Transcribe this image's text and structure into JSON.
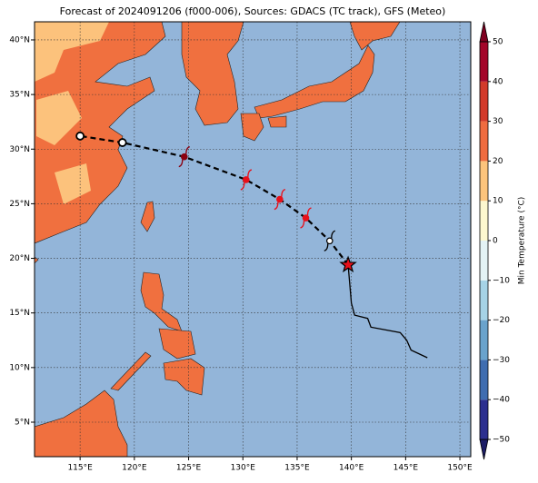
{
  "chart_data": {
    "type": "map",
    "title": "Forecast of 2024091206 (f000-006), Sources: GDACS (TC track), GFS (Meteo)",
    "xlim": [
      110.8,
      151.0
    ],
    "ylim": [
      1.84,
      41.66
    ],
    "xticks": [
      {
        "value": 115,
        "label": "115°E"
      },
      {
        "value": 120,
        "label": "120°E"
      },
      {
        "value": 125,
        "label": "125°E"
      },
      {
        "value": 130,
        "label": "130°E"
      },
      {
        "value": 135,
        "label": "135°E"
      },
      {
        "value": 140,
        "label": "140°E"
      },
      {
        "value": 145,
        "label": "145°E"
      },
      {
        "value": 150,
        "label": "150°E"
      }
    ],
    "yticks": [
      {
        "value": 5,
        "label": "5°N"
      },
      {
        "value": 10,
        "label": "10°N"
      },
      {
        "value": 15,
        "label": "15°N"
      },
      {
        "value": 20,
        "label": "20°N"
      },
      {
        "value": 25,
        "label": "25°N"
      },
      {
        "value": 30,
        "label": "30°N"
      },
      {
        "value": 35,
        "label": "35°N"
      },
      {
        "value": 40,
        "label": "40°N"
      }
    ],
    "grid": true,
    "series": [
      {
        "lon": [
          139.7,
          140.0,
          140.3,
          141.5,
          141.8,
          144.5,
          145.1,
          145.5,
          147.0
        ],
        "lat": [
          19.4,
          15.9,
          14.8,
          14.5,
          13.7,
          13.2,
          12.5,
          11.6,
          10.9
        ],
        "color": "#000000",
        "style": "solid"
      },
      {
        "lon": [
          139.7,
          138.0,
          135.8,
          133.4,
          130.3,
          124.6,
          118.9,
          115.0
        ],
        "lat": [
          19.4,
          21.6,
          23.7,
          25.4,
          27.2,
          29.3,
          30.6,
          31.2
        ],
        "color": "#000000",
        "style": "dashed",
        "markers": [
          "star",
          "typhoon",
          "typhoon",
          "typhoon",
          "typhoon",
          "typhoon",
          "circle",
          "circle"
        ],
        "marker_colors": [
          "#e8101a",
          "#000000",
          "#e8101a",
          "#e8101a",
          "#e8101a",
          "#8b0010",
          "#ffffff",
          "#ffffff"
        ]
      }
    ],
    "colorbar": {
      "label": "Min Temperature (°C)",
      "lim": [
        -50,
        50
      ],
      "ticks": [
        {
          "value": -50,
          "label": "−50"
        },
        {
          "value": -40,
          "label": "−40"
        },
        {
          "value": -30,
          "label": "−30"
        },
        {
          "value": -20,
          "label": "−20"
        },
        {
          "value": -10,
          "label": "−10"
        },
        0,
        10,
        20,
        30,
        40,
        50
      ],
      "colors": [
        "#2c2f8f",
        "#3f6db0",
        "#6aa3cc",
        "#a6d3e6",
        "#e4f3f5",
        "#fdf8cf",
        "#fcc47c",
        "#ef6c40",
        "#d23a2b",
        "#a3052a"
      ],
      "extend_colors": [
        "#1c1d66",
        "#7f0020"
      ]
    }
  }
}
